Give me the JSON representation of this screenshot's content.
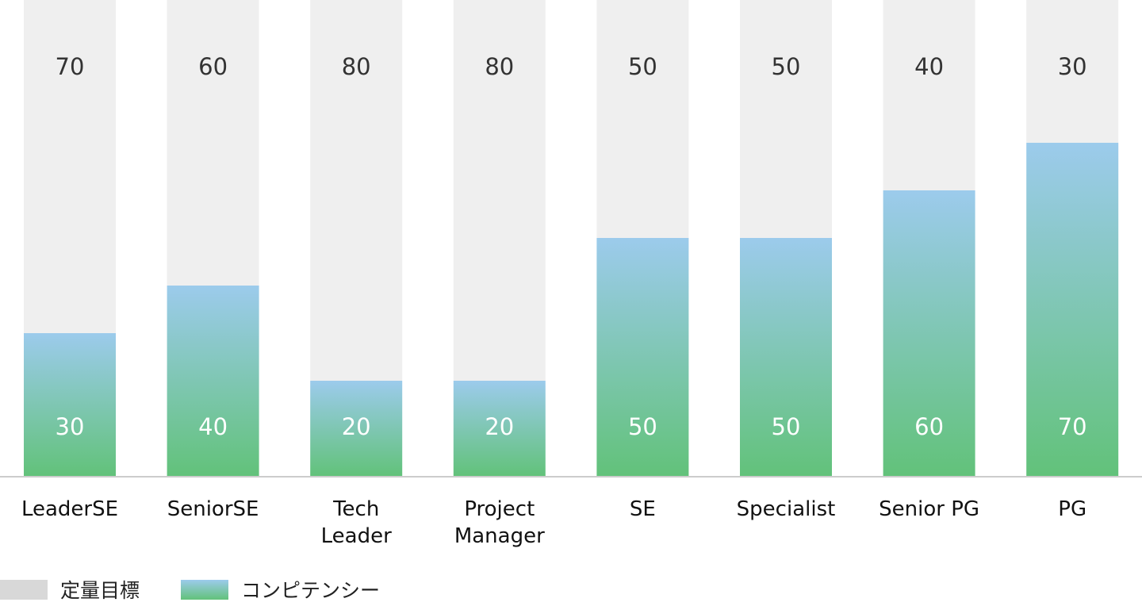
{
  "chart_data": {
    "type": "bar",
    "stacked": true,
    "categories": [
      [
        "LeaderSE"
      ],
      [
        "SeniorSE"
      ],
      [
        "Tech",
        "Leader"
      ],
      [
        "Project",
        "Manager"
      ],
      [
        "SE"
      ],
      [
        "Specialist"
      ],
      [
        "Senior PG"
      ],
      [
        "PG"
      ]
    ],
    "series": [
      {
        "name": "コンピテンシー",
        "values": [
          30,
          40,
          20,
          20,
          50,
          50,
          60,
          70
        ],
        "color_top": "#9ccbec",
        "color_bottom": "#62c27a"
      },
      {
        "name": "定量目標",
        "values": [
          70,
          60,
          80,
          80,
          50,
          50,
          40,
          30
        ],
        "color": "#efefef"
      }
    ],
    "ylim": [
      0,
      100
    ],
    "grid": false,
    "legend_position": "bottom-left"
  }
}
